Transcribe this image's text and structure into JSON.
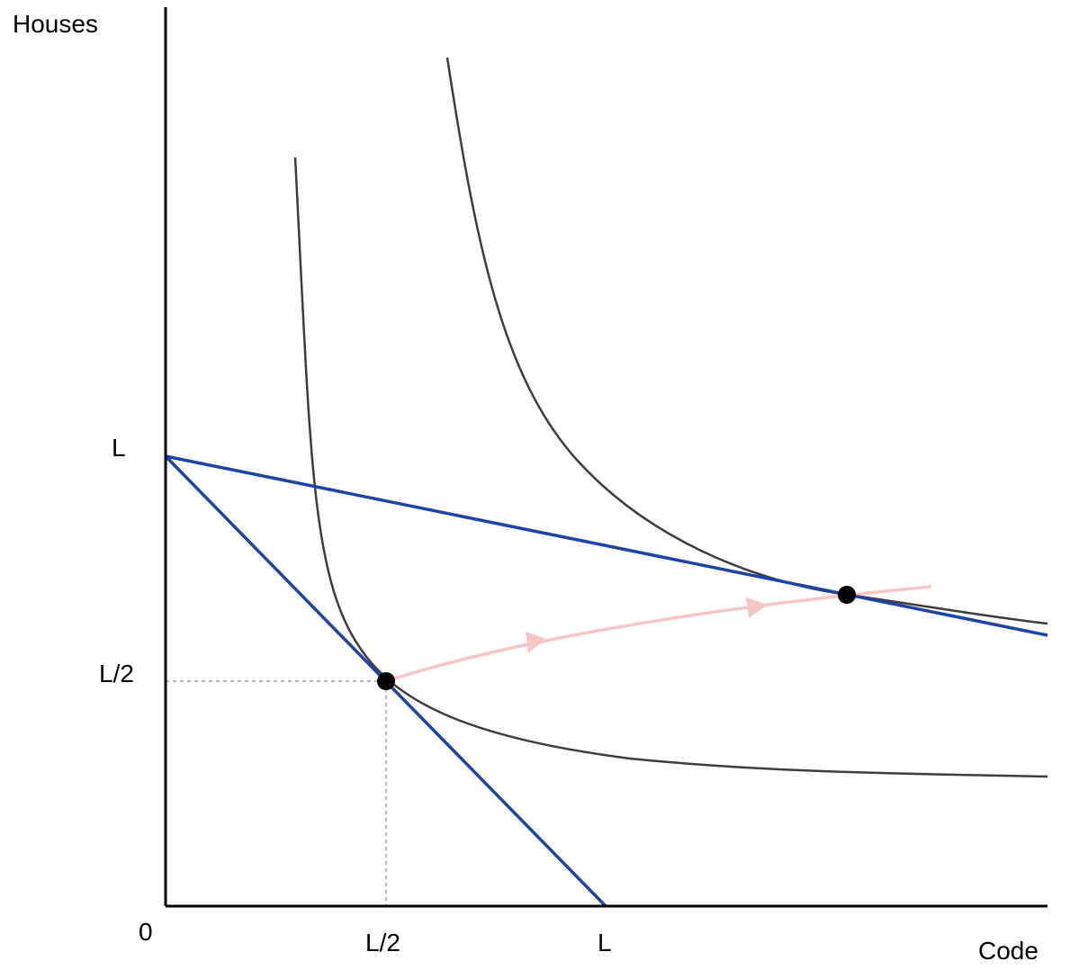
{
  "axes": {
    "y_label": "Houses",
    "x_label": "Code",
    "origin_label": "0"
  },
  "ticks": {
    "y": [
      "L",
      "L/2"
    ],
    "x": [
      "L/2",
      "L"
    ]
  },
  "colors": {
    "axis": "#000000",
    "budget_line": "#1c44a6",
    "indifference_curve": "#3d3d3d",
    "expansion_path": "#f6c6c6",
    "guide": "#9a9a9a",
    "point": "#000000"
  },
  "elements": {
    "budget_lines": 2,
    "indifference_curves": 2,
    "equilibrium_points": 2,
    "expansion_path_arrows": 2
  }
}
